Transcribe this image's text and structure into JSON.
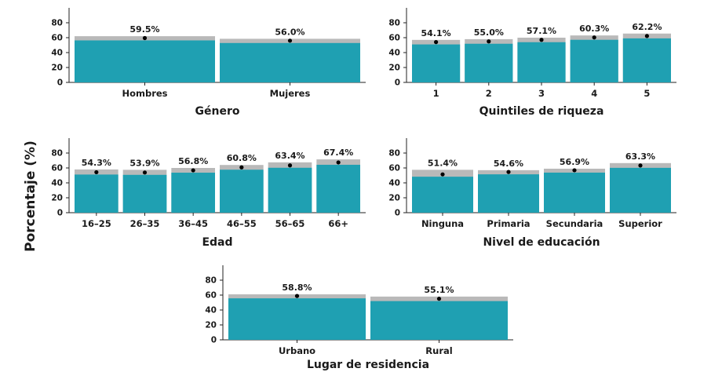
{
  "y_axis_label": "Porcentaje (%)",
  "colors": {
    "bar": "#1fa0b2",
    "interval": "#b9b9b9",
    "point": "#000000"
  },
  "chart_data": [
    {
      "type": "bar",
      "title": "Género",
      "categories": [
        "Hombres",
        "Mujeres"
      ],
      "values": [
        59.5,
        56.0
      ],
      "value_labels": [
        "59.5%",
        "56.0%"
      ],
      "interval_upper": [
        62,
        58.5
      ],
      "ylim": [
        0,
        100
      ],
      "yticks": [
        0,
        20,
        40,
        60,
        80
      ]
    },
    {
      "type": "bar",
      "title": "Quintiles de riqueza",
      "categories": [
        "1",
        "2",
        "3",
        "4",
        "5"
      ],
      "values": [
        54.1,
        55.0,
        57.1,
        60.3,
        62.2
      ],
      "value_labels": [
        "54.1%",
        "55.0%",
        "57.1%",
        "60.3%",
        "62.2%"
      ],
      "interval_upper": [
        57,
        58,
        60,
        63,
        65.5
      ],
      "ylim": [
        0,
        100
      ],
      "yticks": [
        0,
        20,
        40,
        60,
        80
      ]
    },
    {
      "type": "bar",
      "title": "Edad",
      "categories": [
        "16–25",
        "26–35",
        "36–45",
        "46–55",
        "56–65",
        "66+"
      ],
      "values": [
        54.3,
        53.9,
        56.8,
        60.8,
        63.4,
        67.4
      ],
      "value_labels": [
        "54.3%",
        "53.9%",
        "56.8%",
        "60.8%",
        "63.4%",
        "67.4%"
      ],
      "interval_upper": [
        58,
        57.5,
        60,
        64,
        67.5,
        71.5
      ],
      "ylim": [
        0,
        100
      ],
      "yticks": [
        0,
        20,
        40,
        60,
        80
      ]
    },
    {
      "type": "bar",
      "title": "Nivel de educación",
      "categories": [
        "Ninguna",
        "Primaria",
        "Secundaria",
        "Superior"
      ],
      "values": [
        51.4,
        54.6,
        56.9,
        63.3
      ],
      "value_labels": [
        "51.4%",
        "54.6%",
        "56.9%",
        "63.3%"
      ],
      "interval_upper": [
        57.5,
        57,
        59,
        66.5
      ],
      "ylim": [
        0,
        100
      ],
      "yticks": [
        0,
        20,
        40,
        60,
        80
      ]
    },
    {
      "type": "bar",
      "title": "Lugar de residencia",
      "categories": [
        "Urbano",
        "Rural"
      ],
      "values": [
        58.8,
        55.1
      ],
      "value_labels": [
        "58.8%",
        "55.1%"
      ],
      "interval_upper": [
        61,
        58
      ],
      "ylim": [
        0,
        100
      ],
      "yticks": [
        0,
        20,
        40,
        60,
        80
      ]
    }
  ]
}
